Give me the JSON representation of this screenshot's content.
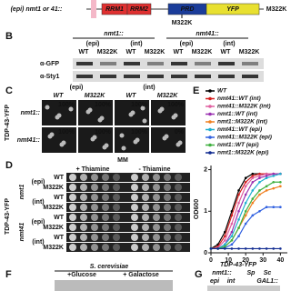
{
  "panel_a": {
    "construct": "(epi) nmt1 or 41::",
    "domains": [
      "RRM1",
      "RRM2",
      "PRD",
      "YFP"
    ],
    "mutation_top": "M322K",
    "mutation_site": "M322K"
  },
  "panel_b": {
    "letter": "B",
    "groups": [
      "nmt1::",
      "nmt41::"
    ],
    "subgroups": [
      "(epi)",
      "(int)",
      "(epi)",
      "(int)"
    ],
    "lanes": [
      "WT",
      "M322K",
      "WT",
      "M322K",
      "WT",
      "M322K",
      "WT",
      "M322K"
    ],
    "blots": [
      "α-GFP",
      "α-Sty1"
    ]
  },
  "panel_c": {
    "letter": "C",
    "subgroups": [
      "(epi)",
      "(int)"
    ],
    "columns": [
      "WT",
      "M322K",
      "WT",
      "M322K"
    ],
    "rows": [
      "nmt1::",
      "nmt41::"
    ],
    "percent": [
      [
        "100%",
        "100%",
        "100%",
        "100%"
      ],
      [
        "100%",
        "100%",
        "100%",
        "0%"
      ]
    ],
    "side_label": "TDP-43-YFP"
  },
  "panel_d": {
    "letter": "D",
    "medium": "MM",
    "conditions": [
      "+ Thiamine",
      "- Thiamine"
    ],
    "groups": [
      {
        "name": "nmt1",
        "rows": [
          {
            "label": "(epi)",
            "strains": [
              "WT",
              "M322K"
            ]
          },
          {
            "label": "(int)",
            "strains": [
              "WT",
              "M322K"
            ]
          }
        ]
      },
      {
        "name": "nmt41",
        "rows": [
          {
            "label": "(epi)",
            "strains": [
              "WT",
              "M322K"
            ]
          },
          {
            "label": "(int)",
            "strains": [
              "WT",
              "M322K"
            ]
          }
        ]
      }
    ],
    "side_label": "TDP-43-YFP"
  },
  "panel_e": {
    "letter": "E",
    "type": "line",
    "y_label": "OD600",
    "x": [
      0,
      4,
      8,
      12,
      16,
      20,
      24,
      28,
      32,
      36,
      40
    ],
    "xlim": [
      0,
      44
    ],
    "xticks": [
      0,
      10,
      20,
      30,
      40
    ],
    "ylim": [
      0,
      2.1
    ],
    "yticks": [
      0,
      1,
      2
    ],
    "series": [
      {
        "name": "WT",
        "color": "#000000",
        "values": [
          0.1,
          0.2,
          0.5,
          1.0,
          1.5,
          1.8,
          1.9,
          1.9,
          1.9,
          1.9,
          1.9
        ]
      },
      {
        "name": "nmt41::WT (int)",
        "color": "#d62020",
        "values": [
          0.1,
          0.15,
          0.4,
          0.9,
          1.4,
          1.7,
          1.85,
          1.9,
          1.9,
          1.9,
          1.9
        ]
      },
      {
        "name": "nmt41::M322K (int)",
        "color": "#e060a0",
        "values": [
          0.1,
          0.12,
          0.3,
          0.7,
          1.2,
          1.6,
          1.8,
          1.85,
          1.9,
          1.9,
          1.9
        ]
      },
      {
        "name": "nmt1::WT (int)",
        "color": "#9a30b0",
        "values": [
          0.1,
          0.1,
          0.2,
          0.5,
          1.0,
          1.4,
          1.7,
          1.8,
          1.85,
          1.9,
          1.9
        ]
      },
      {
        "name": "nmt1::M322K (int)",
        "color": "#f08020",
        "values": [
          0.1,
          0.1,
          0.15,
          0.3,
          0.6,
          0.9,
          1.2,
          1.4,
          1.5,
          1.55,
          1.6
        ]
      },
      {
        "name": "nmt41::WT (epi)",
        "color": "#20b0d0",
        "values": [
          0.1,
          0.1,
          0.2,
          0.4,
          0.8,
          1.2,
          1.5,
          1.7,
          1.8,
          1.85,
          1.9
        ]
      },
      {
        "name": "nmt41::M322K (epi)",
        "color": "#3060e0",
        "values": [
          0.1,
          0.1,
          0.12,
          0.2,
          0.4,
          0.7,
          0.9,
          1.0,
          1.1,
          1.1,
          1.1
        ]
      },
      {
        "name": "nmt1::WT (epi)",
        "color": "#40b040",
        "values": [
          0.1,
          0.1,
          0.15,
          0.3,
          0.6,
          1.0,
          1.3,
          1.5,
          1.6,
          1.7,
          1.7
        ]
      },
      {
        "name": "nmt1::M322K (epi)",
        "color": "#102a90",
        "values": [
          0.1,
          0.1,
          0.1,
          0.1,
          0.1,
          0.1,
          0.1,
          0.1,
          0.1,
          0.1,
          0.1
        ]
      }
    ]
  },
  "panel_f": {
    "letter": "F",
    "organism": "S. cerevisiae",
    "conditions": [
      "+Glucose",
      "+ Galactose"
    ]
  },
  "panel_g": {
    "letter": "G",
    "title": "TDP-43-YFP",
    "labels": [
      "nmt1::",
      "Sp",
      "Sc"
    ],
    "sublabels": [
      "epi",
      "int",
      "GAL1::"
    ]
  }
}
